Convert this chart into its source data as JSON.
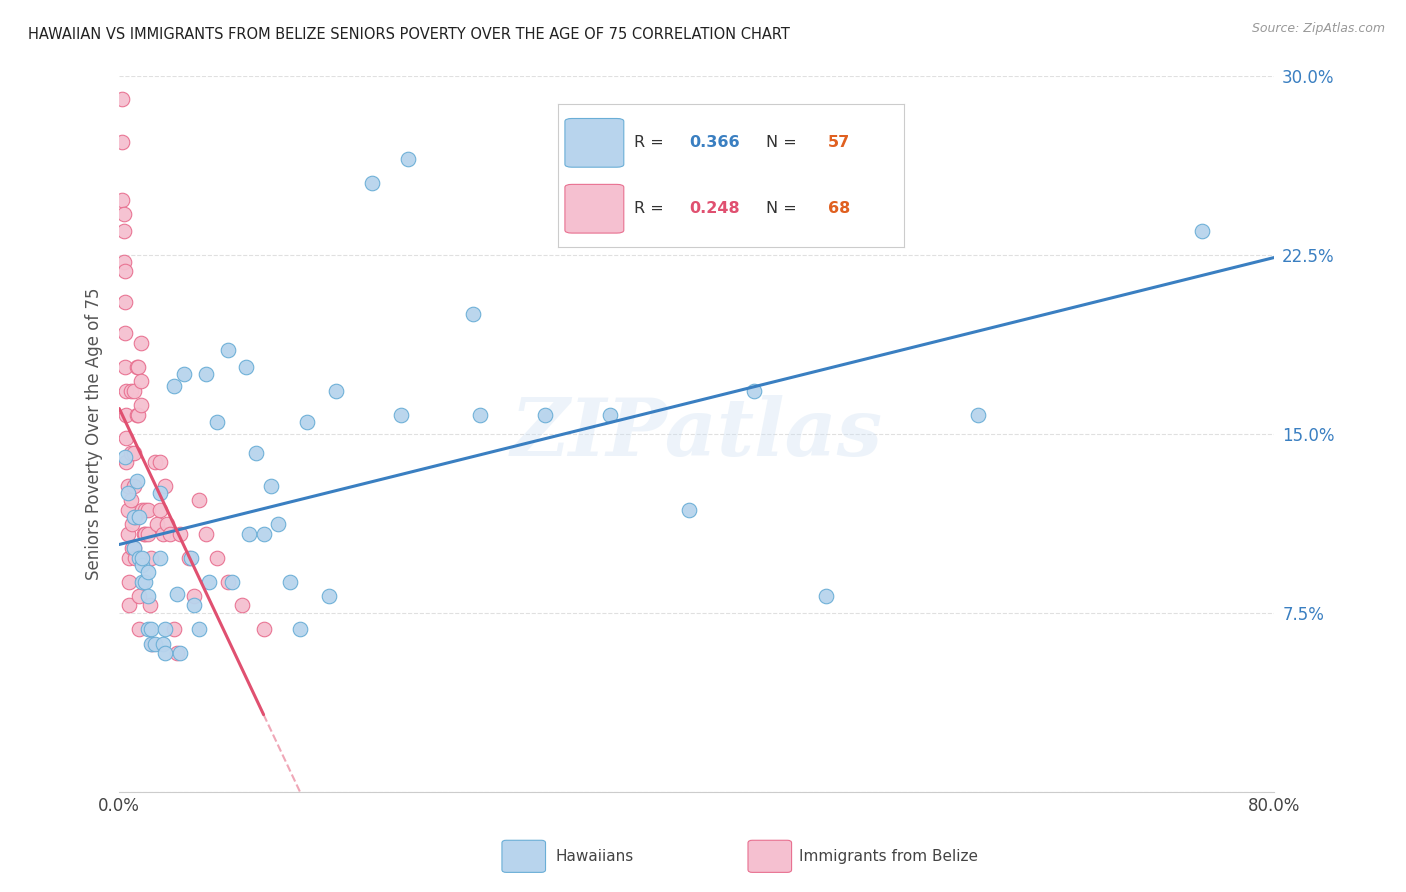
{
  "title": "HAWAIIAN VS IMMIGRANTS FROM BELIZE SENIORS POVERTY OVER THE AGE OF 75 CORRELATION CHART",
  "source": "Source: ZipAtlas.com",
  "ylabel": "Seniors Poverty Over the Age of 75",
  "xlim": [
    0.0,
    0.8
  ],
  "ylim": [
    0.0,
    0.3
  ],
  "xticks": [
    0.0,
    0.1,
    0.2,
    0.3,
    0.4,
    0.5,
    0.6,
    0.7,
    0.8
  ],
  "yticks": [
    0.0,
    0.075,
    0.15,
    0.225,
    0.3
  ],
  "hawaii_R": 0.366,
  "hawaii_N": 57,
  "belize_R": 0.248,
  "belize_N": 68,
  "hawaii_color": "#b8d4ed",
  "belize_color": "#f5c0d0",
  "hawaii_edge_color": "#6aaed6",
  "belize_edge_color": "#e87090",
  "hawaii_line_color": "#3a7fc1",
  "belize_line_color": "#e05070",
  "watermark": "ZIPatlas",
  "hawaiians_x": [
    0.004,
    0.006,
    0.01,
    0.01,
    0.012,
    0.014,
    0.014,
    0.016,
    0.016,
    0.016,
    0.018,
    0.02,
    0.02,
    0.02,
    0.022,
    0.022,
    0.025,
    0.028,
    0.028,
    0.03,
    0.032,
    0.032,
    0.038,
    0.04,
    0.042,
    0.045,
    0.05,
    0.052,
    0.055,
    0.06,
    0.062,
    0.068,
    0.075,
    0.078,
    0.088,
    0.09,
    0.095,
    0.1,
    0.105,
    0.11,
    0.118,
    0.125,
    0.13,
    0.145,
    0.15,
    0.175,
    0.195,
    0.2,
    0.245,
    0.25,
    0.295,
    0.34,
    0.395,
    0.44,
    0.49,
    0.595,
    0.75
  ],
  "hawaiians_y": [
    0.14,
    0.125,
    0.115,
    0.102,
    0.13,
    0.115,
    0.098,
    0.095,
    0.088,
    0.098,
    0.088,
    0.092,
    0.082,
    0.068,
    0.068,
    0.062,
    0.062,
    0.125,
    0.098,
    0.062,
    0.068,
    0.058,
    0.17,
    0.083,
    0.058,
    0.175,
    0.098,
    0.078,
    0.068,
    0.175,
    0.088,
    0.155,
    0.185,
    0.088,
    0.178,
    0.108,
    0.142,
    0.108,
    0.128,
    0.112,
    0.088,
    0.068,
    0.155,
    0.082,
    0.168,
    0.255,
    0.158,
    0.265,
    0.2,
    0.158,
    0.158,
    0.158,
    0.118,
    0.168,
    0.082,
    0.158,
    0.235
  ],
  "belize_x": [
    0.002,
    0.002,
    0.002,
    0.003,
    0.003,
    0.003,
    0.004,
    0.004,
    0.004,
    0.004,
    0.005,
    0.005,
    0.005,
    0.005,
    0.006,
    0.006,
    0.006,
    0.007,
    0.007,
    0.007,
    0.008,
    0.008,
    0.008,
    0.009,
    0.009,
    0.01,
    0.01,
    0.01,
    0.01,
    0.011,
    0.011,
    0.012,
    0.012,
    0.013,
    0.013,
    0.014,
    0.014,
    0.015,
    0.015,
    0.015,
    0.016,
    0.017,
    0.018,
    0.018,
    0.02,
    0.02,
    0.021,
    0.022,
    0.023,
    0.025,
    0.026,
    0.028,
    0.028,
    0.03,
    0.032,
    0.033,
    0.035,
    0.038,
    0.04,
    0.042,
    0.048,
    0.052,
    0.055,
    0.06,
    0.068,
    0.075,
    0.085,
    0.1
  ],
  "belize_y": [
    0.29,
    0.272,
    0.248,
    0.242,
    0.235,
    0.222,
    0.218,
    0.205,
    0.192,
    0.178,
    0.168,
    0.158,
    0.148,
    0.138,
    0.128,
    0.118,
    0.108,
    0.098,
    0.088,
    0.078,
    0.168,
    0.142,
    0.122,
    0.112,
    0.102,
    0.168,
    0.142,
    0.128,
    0.102,
    0.115,
    0.098,
    0.178,
    0.158,
    0.178,
    0.158,
    0.082,
    0.068,
    0.188,
    0.172,
    0.162,
    0.118,
    0.108,
    0.118,
    0.108,
    0.118,
    0.108,
    0.078,
    0.098,
    0.062,
    0.138,
    0.112,
    0.138,
    0.118,
    0.108,
    0.128,
    0.112,
    0.108,
    0.068,
    0.058,
    0.108,
    0.098,
    0.082,
    0.122,
    0.108,
    0.098,
    0.088,
    0.078,
    0.068
  ]
}
